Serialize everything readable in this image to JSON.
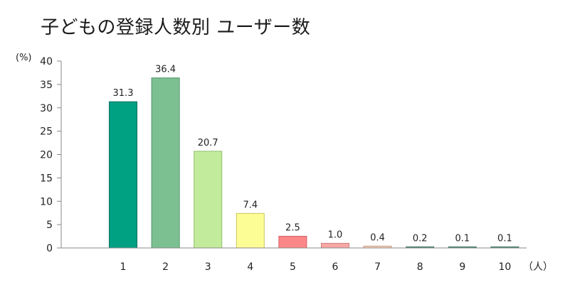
{
  "chart_data": {
    "type": "bar",
    "title": "子どもの登録人数別 ユーザー数",
    "ylabel": "(%)",
    "xunit": "（人）",
    "ylim": [
      0,
      40
    ],
    "yticks": [
      0,
      5,
      10,
      15,
      20,
      25,
      30,
      35,
      40
    ],
    "categories": [
      "1",
      "2",
      "3",
      "4",
      "5",
      "6",
      "7",
      "8",
      "9",
      "10"
    ],
    "values": [
      31.3,
      36.4,
      20.7,
      7.4,
      2.5,
      1.0,
      0.4,
      0.2,
      0.1,
      0.1
    ],
    "value_labels": [
      "31.3",
      "36.4",
      "20.7",
      "7.4",
      "2.5",
      "1.0",
      "0.4",
      "0.2",
      "0.1",
      "0.1"
    ],
    "colors": [
      "#00a083",
      "#7cc091",
      "#c3eb9c",
      "#fdfd96",
      "#fb8789",
      "#f7a8a5",
      "#f6cdb6",
      "#5a9f8a",
      "#5a9f8a",
      "#5a9f8a"
    ],
    "edge_colors": [
      "#00705c",
      "#4e9468",
      "#8fc06a",
      "#c8c860",
      "#d45c60",
      "#d08080",
      "#c9a08a",
      "#3b6b5b",
      "#3b6b5b",
      "#3b6b5b"
    ],
    "grid": false
  }
}
